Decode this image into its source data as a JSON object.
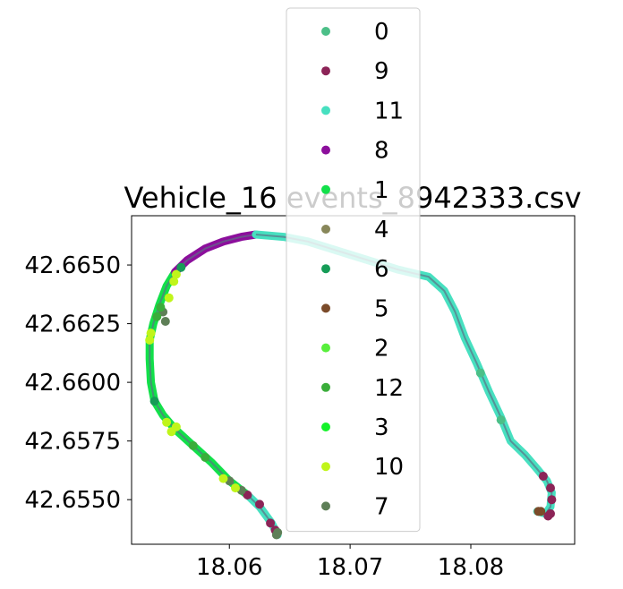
{
  "chart_data": {
    "type": "scatter",
    "title": "Vehicle_16 events_8942333.csv",
    "xlabel": "",
    "ylabel": "",
    "xlim": [
      18.0519,
      18.0886
    ],
    "ylim": [
      42.6531,
      42.6671
    ],
    "x_ticks": [
      "18.06",
      "18.07",
      "18.08"
    ],
    "y_ticks": [
      "42.6550",
      "42.6575",
      "42.6600",
      "42.6625",
      "42.6650"
    ],
    "grid": false,
    "legend_position": "upper center",
    "series": [
      {
        "name": "0",
        "color": "#4cbf88"
      },
      {
        "name": "9",
        "color": "#8c2457"
      },
      {
        "name": "11",
        "color": "#47e0c0"
      },
      {
        "name": "8",
        "color": "#8c0f9c"
      },
      {
        "name": "1",
        "color": "#12e04a"
      },
      {
        "name": "4",
        "color": "#88875a"
      },
      {
        "name": "6",
        "color": "#169c57"
      },
      {
        "name": "5",
        "color": "#7b4b2a"
      },
      {
        "name": "2",
        "color": "#58ef3c"
      },
      {
        "name": "12",
        "color": "#3aad3a"
      },
      {
        "name": "3",
        "color": "#14f22a"
      },
      {
        "name": "10",
        "color": "#c0f51a"
      },
      {
        "name": "7",
        "color": "#5e7f57"
      }
    ],
    "track": [
      {
        "series": "11",
        "points": [
          [
            18.064,
            42.6535
          ],
          [
            18.0635,
            42.654
          ],
          [
            18.0625,
            42.6547
          ],
          [
            18.0615,
            42.6552
          ]
        ]
      },
      {
        "series": "1",
        "points": [
          [
            18.0615,
            42.6552
          ],
          [
            18.06,
            42.6558
          ],
          [
            18.0585,
            42.6566
          ],
          [
            18.057,
            42.6573
          ],
          [
            18.0555,
            42.658
          ],
          [
            18.0545,
            42.6586
          ],
          [
            18.0538,
            42.6592
          ],
          [
            18.0535,
            42.66
          ],
          [
            18.0534,
            42.661
          ],
          [
            18.0534,
            42.6618
          ],
          [
            18.0537,
            42.6625
          ],
          [
            18.0542,
            42.6633
          ],
          [
            18.0548,
            42.6641
          ],
          [
            18.0555,
            42.6647
          ]
        ]
      },
      {
        "series": "8",
        "points": [
          [
            18.0555,
            42.6647
          ],
          [
            18.0565,
            42.6652
          ],
          [
            18.058,
            42.6657
          ],
          [
            18.0595,
            42.666
          ],
          [
            18.061,
            42.6662
          ],
          [
            18.0622,
            42.6663
          ]
        ]
      },
      {
        "series": "11",
        "points": [
          [
            18.0622,
            42.6663
          ],
          [
            18.0645,
            42.6662
          ],
          [
            18.0665,
            42.666
          ],
          [
            18.069,
            42.6656
          ],
          [
            18.0715,
            42.6652
          ],
          [
            18.074,
            42.6648
          ],
          [
            18.0765,
            42.6645
          ],
          [
            18.0778,
            42.6639
          ],
          [
            18.0787,
            42.663
          ],
          [
            18.0795,
            42.6619
          ],
          [
            18.0805,
            42.6608
          ],
          [
            18.0815,
            42.6596
          ],
          [
            18.0825,
            42.6585
          ],
          [
            18.0833,
            42.6575
          ],
          [
            18.0845,
            42.6569
          ],
          [
            18.0855,
            42.6563
          ],
          [
            18.0863,
            42.6558
          ],
          [
            18.0867,
            42.6553
          ],
          [
            18.0866,
            42.6547
          ],
          [
            18.0862,
            42.6544
          ],
          [
            18.0855,
            42.6545
          ]
        ]
      }
    ],
    "events": [
      {
        "series": "9",
        "points": [
          [
            18.0634,
            42.654
          ],
          [
            18.0638,
            42.6537
          ],
          [
            18.0625,
            42.6548
          ],
          [
            18.0615,
            42.6552
          ]
        ]
      },
      {
        "series": "7",
        "points": [
          [
            18.064,
            42.6536
          ],
          [
            18.0639,
            42.6535
          ],
          [
            18.061,
            42.6554
          ],
          [
            18.06,
            42.6558
          ],
          [
            18.0545,
            42.663
          ],
          [
            18.0547,
            42.6626
          ]
        ]
      },
      {
        "series": "10",
        "points": [
          [
            18.0605,
            42.6555
          ],
          [
            18.0595,
            42.6559
          ],
          [
            18.0556,
            42.6581
          ],
          [
            18.0552,
            42.6579
          ],
          [
            18.0548,
            42.6583
          ],
          [
            18.0534,
            42.6618
          ],
          [
            18.0535,
            42.6621
          ],
          [
            18.055,
            42.6636
          ],
          [
            18.0554,
            42.6643
          ],
          [
            18.0556,
            42.6646
          ]
        ]
      },
      {
        "series": "12",
        "points": [
          [
            18.058,
            42.6568
          ],
          [
            18.057,
            42.6573
          ],
          [
            18.054,
            42.6628
          ],
          [
            18.0543,
            42.6632
          ]
        ]
      },
      {
        "series": "6",
        "points": [
          [
            18.0538,
            42.6592
          ],
          [
            18.056,
            42.6649
          ]
        ]
      },
      {
        "series": "9",
        "points": [
          [
            18.0866,
            42.6555
          ],
          [
            18.0867,
            42.655
          ],
          [
            18.0866,
            42.6544
          ],
          [
            18.0864,
            42.6543
          ],
          [
            18.086,
            42.656
          ]
        ]
      },
      {
        "series": "5",
        "points": [
          [
            18.0856,
            42.6545
          ],
          [
            18.0858,
            42.6545
          ]
        ]
      },
      {
        "series": "0",
        "points": [
          [
            18.0808,
            42.6604
          ],
          [
            18.0825,
            42.6584
          ]
        ]
      }
    ]
  }
}
